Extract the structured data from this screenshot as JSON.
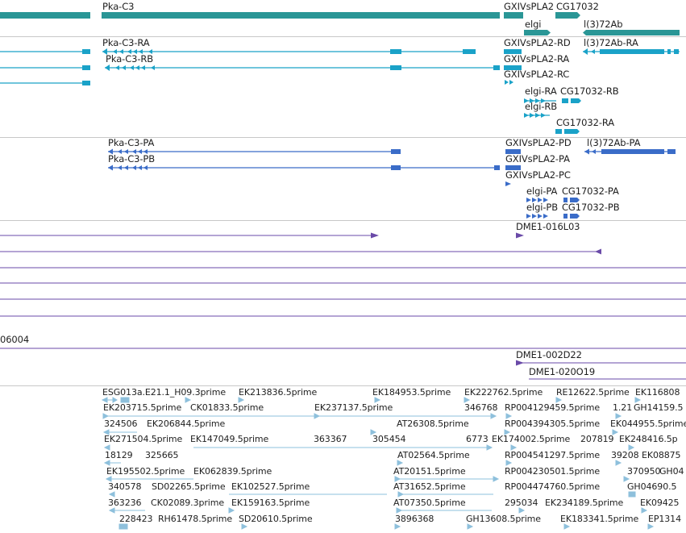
{
  "genes": {
    "pka_c3": "Pka-C3",
    "gxivspla2": "GXIVsPLA2",
    "cg17032": "CG17032",
    "elgi": "elgi",
    "l372ab": "l(3)72Ab"
  },
  "transcripts": {
    "pka_c3_ra": "Pka-C3-RA",
    "pka_c3_rb": "Pka-C3-RB",
    "gxiv_rd": "GXIVsPLA2-RD",
    "gxiv_ra": "GXIVsPLA2-RA",
    "gxiv_rc": "GXIVsPLA2-RC",
    "l372ab_ra": "l(3)72Ab-RA",
    "elgi_ra": "elgi-RA",
    "cg17032_rb": "CG17032-RB",
    "elgi_rb": "elgi-RB",
    "cg17032_ra": "CG17032-RA"
  },
  "proteins": {
    "pka_c3_pa": "Pka-C3-PA",
    "pka_c3_pb": "Pka-C3-PB",
    "gxiv_pd": "GXIVsPLA2-PD",
    "gxiv_pa": "GXIVsPLA2-PA",
    "gxiv_pc": "GXIVsPLA2-PC",
    "l372ab_pa": "l(3)72Ab-PA",
    "elgi_pa": "elgi-PA",
    "cg17032_pa": "CG17032-PA",
    "elgi_pb": "elgi-PB",
    "cg17032_pb": "CG17032-PB"
  },
  "clones": {
    "dme1_016l03": "DME1-016L03",
    "frag_06004": "06004",
    "dme1_002d22": "DME1-002D22",
    "dme1_020o19": "DME1-020O19"
  },
  "ests": {
    "r1": [
      "ESG013a.E21.1_H09.3prime",
      "EK213836.5prime",
      "EK184953.5prime",
      "EK222762.5prime",
      "RE12622.5prime",
      "EK116808"
    ],
    "r2": [
      "EK203715.5prime",
      "CK01833.5prime",
      "EK237137.5prime",
      "346768",
      "RP004129459.5prime",
      "1.21",
      "GH14159.5"
    ],
    "r3": [
      "324506",
      "EK206844.5prime",
      "AT26308.5prime",
      "RP004394305.5prime",
      "EK044955.5prime"
    ],
    "r4": [
      "EK271504.5prime",
      "EK147049.5prime",
      "363367",
      "305454",
      "6773",
      "EK174002.5prime",
      "207819",
      "EK248416.5p"
    ],
    "r5": [
      "18129",
      "325665",
      "AT02564.5prime",
      "RP004541297.5prime",
      "39208",
      "EK08875"
    ],
    "r6": [
      "EK195502.5prime",
      "EK062839.5prime",
      "AT20151.5prime",
      "RP004230501.5prime",
      "370950",
      "GH04"
    ],
    "r7": [
      "340578",
      "SD02265.5prime",
      "EK102527.5prime",
      "AT31652.5prime",
      "RP004474760.5prime",
      "GH04690.5"
    ],
    "r8": [
      "363236",
      "CK02089.3prime",
      "EK159163.5prime",
      "AT07350.5prime",
      "295034",
      "EK234189.5prime",
      "EK09425"
    ],
    "r9": [
      "228423",
      "RH61478.5prime",
      "SD20610.5prime",
      "3896368",
      "GH13608.5prime",
      "EK183341.5prime",
      "EP1314"
    ]
  },
  "colors": {
    "gene": "#2a9696",
    "transcript": "#1aa2c8",
    "protein": "#3a6cc8",
    "clone": "#6a4aa8",
    "est": "#8ec0dc",
    "divider": "#c8c8c8"
  }
}
